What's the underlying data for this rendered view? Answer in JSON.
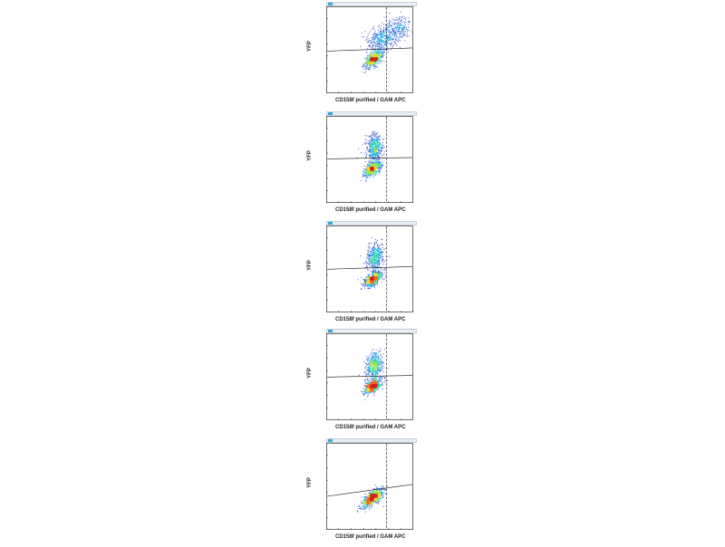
{
  "chart_data": [
    {
      "type": "scatter",
      "title": "",
      "xlabel": "CD158f purified / GAM APC",
      "ylabel": "YFP",
      "scale": "log",
      "xlim": [
        0.1,
        1000000
      ],
      "ylim": [
        0.1,
        1000000
      ],
      "gate": {
        "x": 7000,
        "y_left": 250,
        "y_right": 450
      },
      "populations": [
        {
          "name": "",
          "center": [
            600,
            60
          ],
          "spread": [
            0.35,
            0.32
          ],
          "count": 650,
          "tilt": 0.6
        },
        {
          "name": "",
          "center": [
            3000,
            2500
          ],
          "spread": [
            0.55,
            0.55
          ],
          "count": 420,
          "tilt": 0.2
        },
        {
          "name": "",
          "center": [
            60000,
            20000
          ],
          "spread": [
            0.5,
            0.5
          ],
          "count": 230,
          "tilt": 0.0
        }
      ]
    },
    {
      "type": "scatter",
      "title": "",
      "xlabel": "CD158f purified / GAM APC",
      "ylabel": "YFP",
      "scale": "log",
      "xlim": [
        0.1,
        1000000
      ],
      "ylim": [
        0.1,
        1000000
      ],
      "gate": {
        "x": 7000,
        "y_left": 350,
        "y_right": 450
      },
      "populations": [
        {
          "name": "",
          "center": [
            500,
            60
          ],
          "spread": [
            0.33,
            0.3
          ],
          "count": 650,
          "tilt": 0.5
        },
        {
          "name": "",
          "center": [
            700,
            2500
          ],
          "spread": [
            0.32,
            0.55
          ],
          "count": 520,
          "tilt": 0.1
        }
      ]
    },
    {
      "type": "scatter",
      "title": "",
      "xlabel": "CD158f purified / GAM APC",
      "ylabel": "YFP",
      "scale": "log",
      "xlim": [
        0.1,
        1000000
      ],
      "ylim": [
        0.1,
        1000000
      ],
      "gate": {
        "x": 7000,
        "y_left": 300,
        "y_right": 500
      },
      "populations": [
        {
          "name": "",
          "center": [
            500,
            50
          ],
          "spread": [
            0.36,
            0.3
          ],
          "count": 700,
          "tilt": 0.5
        },
        {
          "name": "",
          "center": [
            800,
            3000
          ],
          "spread": [
            0.35,
            0.55
          ],
          "count": 480,
          "tilt": 0.1
        }
      ]
    },
    {
      "type": "scatter",
      "title": "",
      "xlabel": "CD158f purified / GAM APC",
      "ylabel": "YFP",
      "scale": "log",
      "xlim": [
        0.1,
        1000000
      ],
      "ylim": [
        0.1,
        1000000
      ],
      "gate": {
        "x": 7000,
        "y_left": 300,
        "y_right": 400
      },
      "populations": [
        {
          "name": "",
          "center": [
            500,
            60
          ],
          "spread": [
            0.33,
            0.3
          ],
          "count": 650,
          "tilt": 0.5
        },
        {
          "name": "",
          "center": [
            700,
            2500
          ],
          "spread": [
            0.33,
            0.55
          ],
          "count": 520,
          "tilt": 0.1
        }
      ]
    },
    {
      "type": "scatter",
      "title": "",
      "xlabel": "CD158f purified / GAM APC",
      "ylabel": "YFP",
      "scale": "log",
      "xlim": [
        0.1,
        1000000
      ],
      "ylim": [
        0.1,
        1000000
      ],
      "gate": {
        "x": 7000,
        "y_left": 50,
        "y_right": 450
      },
      "populations": [
        {
          "name": "",
          "center": [
            500,
            40
          ],
          "spread": [
            0.45,
            0.38
          ],
          "count": 850,
          "tilt": 0.7
        }
      ]
    }
  ],
  "colors": {
    "density": [
      "#1a2fb8",
      "#1e66e0",
      "#18b4e6",
      "#2ed8a0",
      "#9be23a",
      "#f2d61e",
      "#f0691a",
      "#d3201c"
    ],
    "axis": "#333333",
    "gate": "#111111",
    "header_icon": "#3aa7d8"
  }
}
